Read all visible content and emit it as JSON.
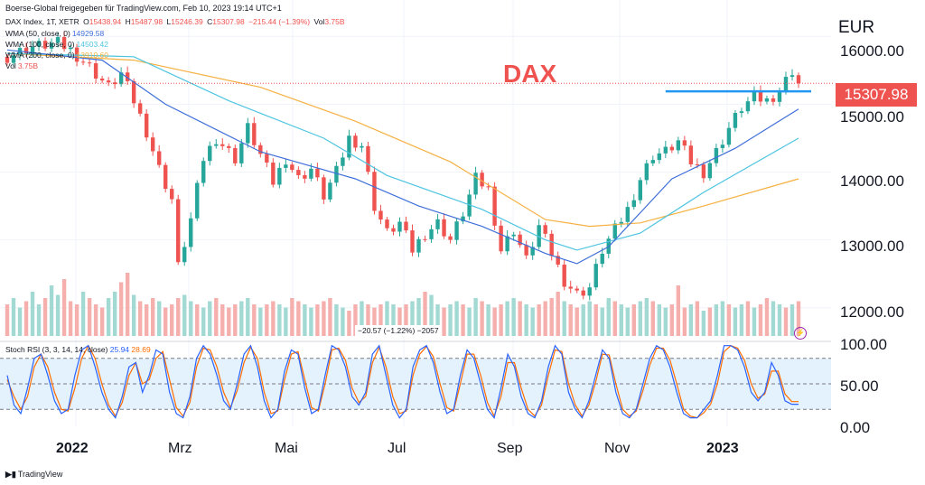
{
  "publisher": "Boerse-Global freigegeben für TradingView.com, Feb 10, 2023 19:14 UTC+1",
  "legend": {
    "symbol": "DAX Index, 1T, XETR",
    "o_label": "O",
    "o": "15438.94",
    "h_label": "H",
    "h": "15487.98",
    "l_label": "L",
    "l": "15246.39",
    "c_label": "C",
    "c": "15307.98",
    "chg": "−215.44 (−1.39%)",
    "vol_label": "Vol",
    "vol": "3.75B",
    "wma50": "WMA (50, close, 0)",
    "wma50_val": "14929.58",
    "wma100": "WMA (100, close, 0)",
    "wma100_val": "14503.42",
    "wma200": "WMA (200, close, 0)",
    "wma200_val": "13910.60",
    "vol_line": "Vol",
    "vol_line_val": "3.75B"
  },
  "title": "DAX",
  "unit": "EUR",
  "last_price": "15307.98",
  "volume_tooltip": "−20.57 (−1.22%) −2057",
  "rsi_header": {
    "label": "Stoch RSI (3, 3, 14, 14, close)",
    "k": "25.94",
    "d": "28.69"
  },
  "footer": "TradingView",
  "colors": {
    "up": "#26a69a",
    "down": "#ef5350",
    "wma50": "#3f6fd9",
    "wma100": "#4dc4e0",
    "wma200": "#f5b041",
    "k_line": "#2962ff",
    "d_line": "#ff6d00",
    "rsi_band": "#e3f2fd",
    "hline": "#2196f3"
  },
  "chart_data": {
    "type": "candlestick",
    "x_labels": [
      "2022",
      "Mrz",
      "Mai",
      "Jul",
      "Sep",
      "Nov",
      "2023"
    ],
    "y_ticks": [
      "16000.00",
      "15000.00",
      "14000.00",
      "13000.00",
      "12000.00"
    ],
    "y_range": [
      11850,
      16350
    ],
    "rsi_ticks": [
      "100.00",
      "50.00",
      "0.00"
    ],
    "rsi_levels": [
      80,
      20
    ],
    "horizontal_line": 15190,
    "close_path": [
      [
        0,
        15700
      ],
      [
        4,
        15850
      ],
      [
        8,
        15900
      ],
      [
        10,
        15800
      ],
      [
        13,
        15550
      ],
      [
        16,
        15250
      ],
      [
        18,
        15450
      ],
      [
        20,
        15050
      ],
      [
        22,
        14600
      ],
      [
        24,
        14050
      ],
      [
        26,
        13600
      ],
      [
        27,
        12600
      ],
      [
        29,
        13300
      ],
      [
        31,
        14200
      ],
      [
        33,
        14500
      ],
      [
        36,
        14200
      ],
      [
        38,
        14650
      ],
      [
        40,
        14250
      ],
      [
        42,
        13850
      ],
      [
        44,
        14200
      ],
      [
        46,
        13900
      ],
      [
        48,
        14050
      ],
      [
        50,
        13650
      ],
      [
        52,
        14000
      ],
      [
        54,
        14500
      ],
      [
        56,
        14400
      ],
      [
        58,
        13500
      ],
      [
        60,
        13100
      ],
      [
        62,
        13250
      ],
      [
        64,
        12850
      ],
      [
        66,
        13100
      ],
      [
        68,
        13250
      ],
      [
        70,
        13000
      ],
      [
        72,
        13400
      ],
      [
        74,
        13900
      ],
      [
        76,
        13750
      ],
      [
        78,
        12850
      ],
      [
        80,
        13150
      ],
      [
        82,
        12700
      ],
      [
        84,
        13200
      ],
      [
        86,
        12800
      ],
      [
        88,
        12400
      ],
      [
        90,
        12200
      ],
      [
        92,
        12300
      ],
      [
        94,
        12850
      ],
      [
        96,
        13150
      ],
      [
        98,
        13450
      ],
      [
        100,
        13900
      ],
      [
        102,
        14250
      ],
      [
        104,
        14300
      ],
      [
        106,
        14450
      ],
      [
        108,
        14150
      ],
      [
        110,
        14000
      ],
      [
        112,
        14300
      ],
      [
        114,
        14650
      ],
      [
        116,
        14950
      ],
      [
        118,
        15100
      ],
      [
        120,
        15050
      ],
      [
        122,
        15200
      ],
      [
        124,
        15500
      ],
      [
        125,
        15308
      ]
    ],
    "wma50": [
      [
        0,
        15800
      ],
      [
        15,
        15650
      ],
      [
        25,
        15000
      ],
      [
        40,
        14300
      ],
      [
        55,
        13900
      ],
      [
        65,
        13500
      ],
      [
        75,
        13200
      ],
      [
        85,
        12800
      ],
      [
        90,
        12650
      ],
      [
        95,
        12900
      ],
      [
        105,
        13900
      ],
      [
        115,
        14350
      ],
      [
        125,
        14930
      ]
    ],
    "wma100": [
      [
        0,
        15750
      ],
      [
        20,
        15700
      ],
      [
        35,
        15050
      ],
      [
        50,
        14500
      ],
      [
        60,
        13950
      ],
      [
        75,
        13450
      ],
      [
        85,
        13000
      ],
      [
        90,
        12850
      ],
      [
        100,
        13100
      ],
      [
        110,
        13700
      ],
      [
        125,
        14500
      ]
    ],
    "wma200": [
      [
        0,
        15750
      ],
      [
        20,
        15650
      ],
      [
        40,
        15250
      ],
      [
        55,
        14750
      ],
      [
        70,
        14150
      ],
      [
        85,
        13300
      ],
      [
        92,
        13200
      ],
      [
        100,
        13250
      ],
      [
        110,
        13500
      ],
      [
        125,
        13900
      ]
    ],
    "volume_relative": [
      0.5,
      0.6,
      0.45,
      0.55,
      0.7,
      0.5,
      0.6,
      0.8,
      0.65,
      0.9,
      0.55,
      0.5,
      0.7,
      0.6,
      0.5,
      0.45,
      0.6,
      0.7,
      0.85,
      1.0,
      0.65,
      0.55,
      0.5,
      0.6,
      0.55,
      0.45,
      0.5,
      0.6,
      0.65,
      0.55,
      0.5,
      0.45,
      0.55,
      0.6,
      0.5,
      0.45,
      0.5,
      0.55,
      0.6,
      0.5,
      0.45,
      0.5,
      0.55,
      0.5,
      0.45,
      0.6,
      0.55,
      0.5,
      0.45,
      0.5,
      0.55,
      0.6,
      0.5,
      0.45,
      0.4,
      0.5,
      0.55,
      0.5,
      0.45,
      0.5,
      0.55,
      0.5,
      0.45,
      0.5,
      0.55,
      0.6,
      0.7,
      0.65,
      0.5,
      0.45,
      0.5,
      0.55,
      0.5,
      0.45,
      0.6,
      0.55,
      0.5,
      0.45,
      0.5,
      0.55,
      0.6,
      0.55,
      0.5,
      0.45,
      0.5,
      0.55,
      0.6,
      0.7,
      0.55,
      0.5,
      0.45,
      0.5,
      0.55,
      0.5,
      0.45,
      0.6,
      0.55,
      0.5,
      0.45,
      0.5,
      0.55,
      0.6,
      0.55,
      0.5,
      0.45,
      0.5,
      0.8,
      0.45,
      0.5,
      0.55,
      0.4,
      0.45,
      0.5,
      0.55,
      0.5,
      0.45,
      0.5,
      0.55,
      0.45,
      0.5,
      0.6,
      0.55,
      0.5,
      0.45,
      0.5,
      0.55
    ],
    "stoch_k": [
      60,
      25,
      15,
      45,
      80,
      85,
      60,
      30,
      15,
      20,
      60,
      90,
      95,
      70,
      40,
      20,
      10,
      35,
      70,
      75,
      40,
      60,
      90,
      85,
      40,
      15,
      10,
      35,
      80,
      95,
      85,
      60,
      30,
      20,
      50,
      85,
      95,
      70,
      30,
      10,
      20,
      65,
      90,
      85,
      45,
      15,
      20,
      60,
      95,
      90,
      70,
      35,
      25,
      40,
      85,
      95,
      60,
      25,
      10,
      20,
      70,
      90,
      95,
      75,
      40,
      15,
      20,
      60,
      90,
      80,
      50,
      20,
      10,
      45,
      85,
      70,
      35,
      15,
      10,
      30,
      70,
      95,
      85,
      40,
      20,
      10,
      30,
      60,
      90,
      80,
      40,
      15,
      10,
      20,
      50,
      80,
      95,
      90,
      70,
      40,
      15,
      10,
      10,
      20,
      30,
      60,
      95,
      95,
      90,
      70,
      40,
      30,
      40,
      75,
      60,
      30,
      26,
      26
    ],
    "stoch_d": [
      55,
      35,
      20,
      35,
      70,
      85,
      70,
      40,
      20,
      18,
      45,
      80,
      95,
      80,
      50,
      25,
      12,
      28,
      60,
      75,
      50,
      55,
      80,
      88,
      55,
      22,
      12,
      28,
      70,
      92,
      90,
      70,
      40,
      22,
      42,
      75,
      93,
      80,
      40,
      15,
      18,
      55,
      85,
      88,
      55,
      22,
      18,
      50,
      90,
      92,
      78,
      45,
      28,
      35,
      75,
      93,
      70,
      35,
      15,
      18,
      60,
      85,
      94,
      82,
      50,
      22,
      18,
      50,
      85,
      85,
      60,
      28,
      12,
      35,
      75,
      75,
      45,
      20,
      12,
      25,
      60,
      90,
      88,
      50,
      25,
      12,
      25,
      52,
      85,
      84,
      50,
      20,
      12,
      18,
      42,
      72,
      92,
      92,
      78,
      50,
      20,
      12,
      10,
      16,
      26,
      50,
      88,
      95,
      92,
      78,
      50,
      33,
      38,
      65,
      65,
      38,
      29,
      29
    ]
  }
}
